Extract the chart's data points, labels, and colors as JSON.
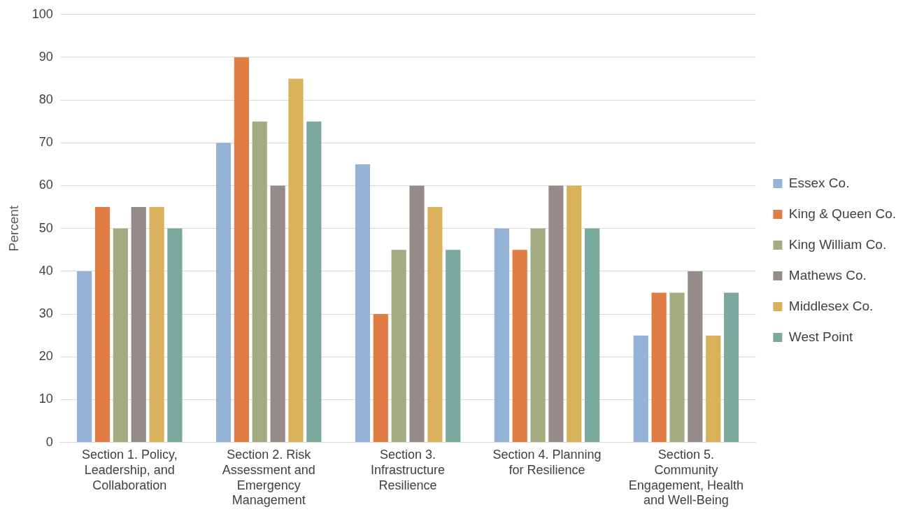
{
  "chart_data": {
    "type": "bar",
    "categories": [
      "Section 1. Policy, Leadership, and Collaboration",
      "Section 2. Risk Assessment and Emergency Management",
      "Section 3. Infrastructure Resilience",
      "Section 4. Planning for Resilience",
      "Section 5. Community Engagement, Health and Well-Being"
    ],
    "series": [
      {
        "name": "Essex Co.",
        "color": "#95b3d7",
        "values": [
          40,
          70,
          65,
          50,
          25
        ]
      },
      {
        "name": "King & Queen Co.",
        "color": "#e07d45",
        "values": [
          55,
          90,
          30,
          45,
          35
        ]
      },
      {
        "name": "King William Co.",
        "color": "#a2ac80",
        "values": [
          50,
          75,
          45,
          50,
          35
        ]
      },
      {
        "name": "Mathews Co.",
        "color": "#968b88",
        "values": [
          55,
          60,
          60,
          60,
          40
        ]
      },
      {
        "name": "Middlesex Co.",
        "color": "#d9b15b",
        "values": [
          55,
          85,
          55,
          60,
          25
        ]
      },
      {
        "name": "West Point",
        "color": "#7ba99d",
        "values": [
          50,
          75,
          45,
          50,
          35
        ]
      }
    ],
    "ylabel": "Percent",
    "ylim": [
      0,
      100
    ],
    "yticks": [
      0,
      10,
      20,
      30,
      40,
      50,
      60,
      70,
      80,
      90,
      100
    ],
    "grid": "y",
    "legend": "right"
  }
}
